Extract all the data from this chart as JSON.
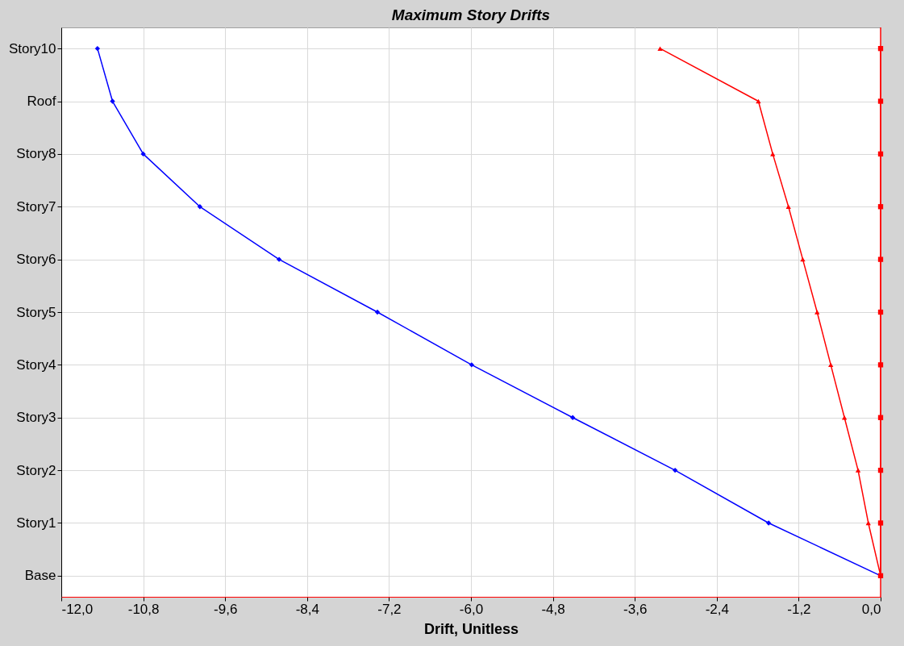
{
  "chart_data": {
    "type": "line",
    "orientation": "horizontal",
    "title": "Maximum Story Drifts",
    "xlabel": "Drift, Unitless",
    "categories": [
      "Story10",
      "Roof",
      "Story8",
      "Story7",
      "Story6",
      "Story5",
      "Story4",
      "Story3",
      "Story2",
      "Story1",
      "Base"
    ],
    "xlim": [
      -12,
      0
    ],
    "xticks": [
      {
        "value": -12,
        "label": "-12,0"
      },
      {
        "value": -10.8,
        "label": "-10,8"
      },
      {
        "value": -9.6,
        "label": "-9,6"
      },
      {
        "value": -8.4,
        "label": "-8,4"
      },
      {
        "value": -7.2,
        "label": "-7,2"
      },
      {
        "value": -6,
        "label": "-6,0"
      },
      {
        "value": -4.8,
        "label": "-4,8"
      },
      {
        "value": -3.6,
        "label": "-3,6"
      },
      {
        "value": -2.4,
        "label": "-2,4"
      },
      {
        "value": -1.2,
        "label": "-1,2"
      },
      {
        "value": 0,
        "label": "0,0"
      }
    ],
    "grid": true,
    "series": [
      {
        "color": "#0000ff",
        "marker": "diamond",
        "values": [
          -11.47,
          -11.25,
          -10.8,
          -9.97,
          -8.81,
          -7.37,
          -5.99,
          -4.51,
          -3.01,
          -1.64,
          0
        ]
      },
      {
        "color": "#ff0000",
        "marker": "triangle",
        "values": [
          -3.23,
          -1.79,
          -1.58,
          -1.35,
          -1.14,
          -0.93,
          -0.73,
          -0.53,
          -0.33,
          -0.18,
          0
        ]
      },
      {
        "color": "#ff0000",
        "marker": "square",
        "values": [
          0,
          0,
          0,
          0,
          0,
          0,
          0,
          0,
          0,
          0,
          0
        ]
      }
    ],
    "ref_lines": [
      {
        "axis": "x",
        "value": 0,
        "color": "#ff0000"
      }
    ]
  }
}
